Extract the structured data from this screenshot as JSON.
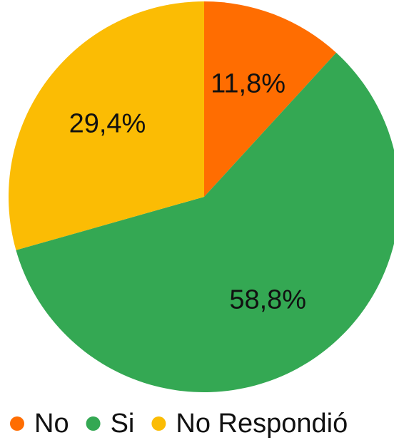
{
  "chart_data": {
    "type": "pie",
    "title": "",
    "categories": [
      "No",
      "Si",
      "No Respondió"
    ],
    "values": [
      11.8,
      58.8,
      29.4
    ],
    "value_labels": [
      "11,8%",
      "58,8%",
      "29,4%"
    ],
    "colors": [
      "#ff6d01",
      "#34a853",
      "#fbbc04"
    ],
    "start_angle_deg": 0,
    "direction": "clockwise",
    "legend": {
      "position": "bottom",
      "items": [
        {
          "label": "No",
          "color": "#ff6d01"
        },
        {
          "label": "Si",
          "color": "#34a853"
        },
        {
          "label": "No Respondió",
          "color": "#fbbc04"
        }
      ]
    }
  }
}
